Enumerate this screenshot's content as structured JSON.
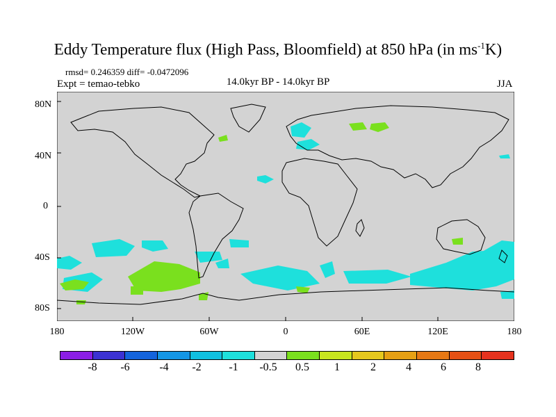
{
  "title": {
    "main": "Eddy Temperature flux (High Pass, Bloomfield) at 850 hPa (in ms",
    "sup": "-1",
    "tail": "K)"
  },
  "stats": "rmsd= 0.246359 diff= -0.0472096",
  "experiment": "Expt = temao-tebko",
  "period": "14.0kyr BP - 14.0kyr BP",
  "season": "JJA",
  "map": {
    "lat_labels": [
      "80N",
      "40N",
      "0",
      "40S",
      "80S"
    ],
    "lon_labels": [
      "180",
      "120W",
      "60W",
      "0",
      "60E",
      "120E",
      "180"
    ],
    "lat_range": [
      -90,
      90
    ],
    "lon_range": [
      -180,
      180
    ],
    "background_color": "#d3d3d3"
  },
  "colorbar": {
    "colors": [
      "#8b1ee6",
      "#3c32d2",
      "#1464dc",
      "#1496e6",
      "#10c0e0",
      "#1ee0dc",
      "#d3d3d3",
      "#7ae01e",
      "#c8e61e",
      "#e6c81e",
      "#e6a014",
      "#e67814",
      "#e65014",
      "#e6321e"
    ],
    "labels": [
      "-8",
      "-6",
      "-4",
      "-2",
      "-1",
      "-0.5",
      "0.5",
      "1",
      "2",
      "4",
      "6",
      "8"
    ]
  }
}
